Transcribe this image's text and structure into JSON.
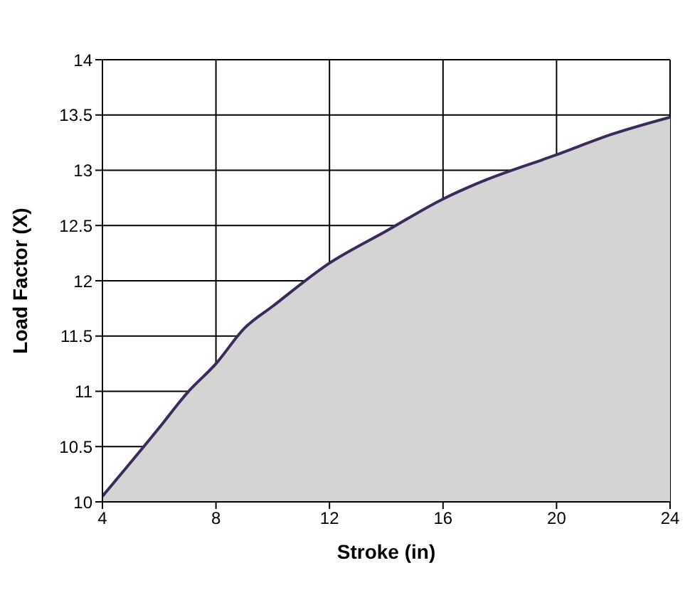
{
  "chart_data": {
    "type": "area",
    "xlabel": "Stroke (in)",
    "ylabel": "Load Factor (X)",
    "x": [
      4,
      6,
      7,
      8,
      9,
      10,
      12,
      14,
      16,
      17.2,
      20,
      22,
      24
    ],
    "series": [
      {
        "color": "#3b2a5a",
        "values": [
          10.05,
          10.67,
          10.99,
          11.25,
          11.57,
          11.77,
          12.16,
          12.45,
          12.74,
          12.88,
          13.14,
          13.33,
          13.48
        ]
      }
    ],
    "xlim": [
      4,
      24
    ],
    "xticks": [
      4,
      8,
      12,
      16,
      20,
      24
    ],
    "ylim": [
      10,
      14
    ],
    "yticks": [
      10,
      10.5,
      11,
      11.5,
      12,
      12.5,
      13,
      13.5,
      14
    ],
    "grid": true,
    "legend": false
  }
}
